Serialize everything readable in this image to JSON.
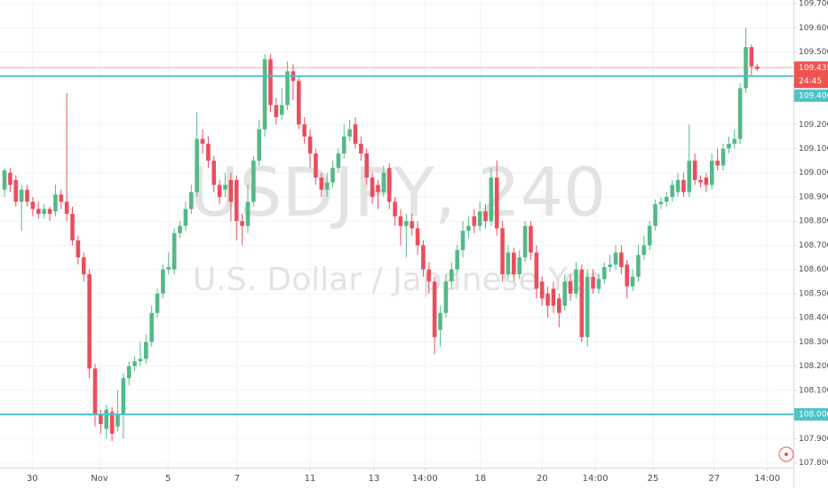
{
  "chart_data": {
    "type": "candlestick",
    "watermark": "USDJPY, 240",
    "watermark_subtitle": "U.S. Dollar / Japanese Yen",
    "up_color": "#53b987",
    "down_color": "#eb4d5c",
    "open": [
      108.93,
      109.0,
      108.97,
      108.88,
      108.93,
      108.88,
      108.85,
      108.83,
      108.85,
      108.84,
      108.91,
      108.88,
      108.83,
      108.72,
      108.65,
      108.58,
      108.19,
      108.0,
      107.94,
      108.01,
      107.95,
      108.0,
      108.15,
      108.2,
      108.22,
      108.23,
      108.3,
      108.42,
      108.5,
      108.6,
      108.6,
      108.75,
      108.78,
      108.85,
      108.92,
      109.14,
      109.12,
      109.05,
      108.95,
      108.93,
      108.97,
      108.97,
      108.8,
      108.78,
      108.88,
      109.05,
      109.18,
      109.47,
      109.28,
      109.24,
      109.28,
      109.42,
      109.38,
      109.2,
      109.15,
      109.08,
      108.98,
      108.93,
      108.96,
      109.02,
      109.08,
      109.15,
      109.2,
      109.12,
      109.08,
      108.98,
      108.95,
      108.92,
      109.02,
      108.88,
      108.82,
      108.78,
      108.8,
      108.77,
      108.7,
      108.6,
      108.55,
      108.35,
      108.42,
      108.55,
      108.6,
      108.68,
      108.76,
      108.82,
      108.78,
      108.84,
      108.8,
      108.98,
      108.77,
      108.58,
      108.67,
      108.58,
      108.65,
      108.78,
      108.67,
      108.55,
      108.5,
      108.52,
      108.48,
      108.45,
      108.55,
      108.5,
      108.6,
      108.32,
      108.57,
      108.52,
      108.56,
      108.61,
      108.62,
      108.67,
      108.62,
      108.53,
      108.57,
      108.66,
      108.7,
      108.78,
      108.87,
      108.88,
      108.9,
      108.92,
      108.97,
      108.92,
      109.05,
      108.97,
      108.98,
      108.95,
      109.05,
      109.03,
      109.1,
      109.12,
      109.14,
      109.35,
      109.52,
      109.44
    ],
    "high": [
      109.02,
      109.02,
      108.99,
      108.95,
      108.95,
      108.9,
      108.88,
      108.87,
      108.86,
      108.95,
      108.93,
      109.33,
      108.86,
      108.74,
      108.67,
      108.6,
      108.21,
      108.02,
      108.04,
      108.03,
      108.1,
      108.17,
      108.22,
      108.24,
      108.3,
      108.33,
      108.45,
      108.52,
      108.62,
      108.67,
      108.77,
      108.8,
      108.88,
      108.95,
      109.25,
      109.18,
      109.15,
      109.07,
      108.97,
      109.0,
      109.0,
      108.99,
      108.83,
      108.95,
      109.07,
      109.22,
      109.49,
      109.49,
      109.31,
      109.35,
      109.46,
      109.45,
      109.4,
      109.23,
      109.18,
      109.1,
      109.0,
      109.0,
      109.05,
      109.1,
      109.2,
      109.22,
      109.23,
      109.15,
      109.1,
      109.0,
      108.97,
      109.03,
      109.04,
      108.9,
      108.85,
      108.83,
      108.83,
      108.8,
      108.72,
      108.63,
      108.57,
      108.45,
      108.58,
      108.63,
      108.7,
      108.8,
      108.82,
      108.85,
      108.88,
      108.87,
      109.02,
      109.05,
      108.8,
      108.7,
      108.69,
      108.68,
      108.8,
      108.8,
      108.7,
      108.57,
      108.53,
      108.55,
      108.5,
      108.58,
      108.58,
      108.63,
      108.62,
      108.6,
      108.6,
      108.58,
      108.63,
      108.66,
      108.7,
      108.7,
      108.64,
      108.6,
      108.7,
      108.74,
      108.8,
      108.89,
      108.9,
      108.92,
      108.97,
      109.0,
      109.0,
      109.2,
      109.08,
      108.99,
      109.0,
      109.08,
      109.1,
      109.12,
      109.15,
      109.18,
      109.37,
      109.6,
      109.53,
      109.45
    ],
    "low": [
      108.9,
      108.92,
      108.86,
      108.76,
      108.86,
      108.82,
      108.81,
      108.81,
      108.8,
      108.82,
      108.85,
      108.8,
      108.7,
      108.62,
      108.55,
      108.15,
      107.95,
      107.92,
      107.9,
      107.89,
      107.93,
      107.9,
      108.12,
      108.18,
      108.2,
      108.21,
      108.28,
      108.4,
      108.48,
      108.58,
      108.58,
      108.73,
      108.76,
      108.83,
      108.9,
      109.08,
      109.02,
      108.92,
      108.87,
      108.9,
      108.8,
      108.72,
      108.7,
      108.75,
      108.86,
      109.03,
      109.15,
      109.25,
      109.2,
      109.22,
      109.26,
      109.3,
      109.18,
      109.12,
      109.02,
      108.95,
      108.9,
      108.9,
      108.94,
      109.0,
      109.06,
      109.13,
      109.1,
      109.05,
      108.95,
      108.87,
      108.85,
      108.9,
      108.85,
      108.78,
      108.7,
      108.65,
      108.74,
      108.66,
      108.57,
      108.5,
      108.25,
      108.28,
      108.4,
      108.52,
      108.58,
      108.65,
      108.73,
      108.75,
      108.76,
      108.77,
      108.78,
      108.74,
      108.55,
      108.56,
      108.55,
      108.56,
      108.63,
      108.64,
      108.48,
      108.45,
      108.4,
      108.42,
      108.36,
      108.43,
      108.47,
      108.48,
      108.3,
      108.28,
      108.5,
      108.5,
      108.54,
      108.59,
      108.6,
      108.58,
      108.48,
      108.51,
      108.55,
      108.64,
      108.68,
      108.76,
      108.85,
      108.86,
      108.88,
      108.9,
      108.9,
      108.9,
      108.95,
      108.94,
      108.92,
      108.93,
      109.01,
      109.01,
      109.08,
      109.1,
      109.12,
      109.33,
      109.4,
      109.42
    ],
    "close": [
      109.01,
      108.95,
      108.88,
      108.93,
      108.88,
      108.85,
      108.83,
      108.85,
      108.83,
      108.91,
      108.88,
      108.83,
      108.72,
      108.65,
      108.58,
      108.19,
      108.0,
      107.96,
      108.02,
      107.92,
      108.0,
      108.15,
      108.2,
      108.22,
      108.23,
      108.3,
      108.42,
      108.5,
      108.6,
      108.61,
      108.75,
      108.78,
      108.85,
      108.92,
      109.14,
      109.12,
      109.05,
      108.95,
      108.9,
      108.95,
      108.88,
      108.8,
      108.78,
      108.88,
      109.05,
      109.18,
      109.47,
      109.28,
      109.23,
      109.28,
      109.42,
      109.38,
      109.2,
      109.15,
      109.08,
      108.98,
      108.93,
      108.96,
      109.02,
      109.08,
      109.15,
      109.18,
      109.12,
      109.08,
      108.98,
      108.9,
      108.92,
      109.0,
      108.88,
      108.82,
      108.78,
      108.8,
      108.77,
      108.7,
      108.6,
      108.55,
      108.32,
      108.42,
      108.55,
      108.6,
      108.68,
      108.76,
      108.78,
      108.78,
      108.84,
      108.8,
      108.98,
      108.77,
      108.58,
      108.67,
      108.58,
      108.65,
      108.78,
      108.67,
      108.52,
      108.48,
      108.45,
      108.45,
      108.42,
      108.55,
      108.5,
      108.6,
      108.32,
      108.57,
      108.52,
      108.56,
      108.61,
      108.62,
      108.67,
      108.61,
      108.53,
      108.57,
      108.66,
      108.7,
      108.78,
      108.87,
      108.88,
      108.9,
      108.95,
      108.97,
      108.92,
      109.05,
      108.97,
      108.96,
      108.95,
      109.05,
      109.03,
      109.1,
      109.12,
      109.14,
      109.35,
      109.52,
      109.44,
      109.43
    ],
    "xlim": [
      -0.8,
      139.4
    ],
    "xticks": [
      {
        "value": 4.9,
        "label": "30"
      },
      {
        "value": 16.8,
        "label": "Nov"
      },
      {
        "value": 28.9,
        "label": "5"
      },
      {
        "value": 41.1,
        "label": "7"
      },
      {
        "value": 54,
        "label": "11"
      },
      {
        "value": 65.3,
        "label": "13"
      },
      {
        "value": 74.3,
        "label": "14:00"
      },
      {
        "value": 84.1,
        "label": "18"
      },
      {
        "value": 95,
        "label": "20"
      },
      {
        "value": 104.4,
        "label": "14:00"
      },
      {
        "value": 114.6,
        "label": "25"
      },
      {
        "value": 125.4,
        "label": "27"
      },
      {
        "value": 134.8,
        "label": "14:00"
      }
    ],
    "ylim": [
      107.78,
      109.715
    ],
    "yticks": [
      {
        "value": 109.7,
        "label": "109.700"
      },
      {
        "value": 109.6,
        "label": "109.600"
      },
      {
        "value": 109.5,
        "label": "109.500"
      },
      {
        "value": 109.2,
        "label": "109.200"
      },
      {
        "value": 109.1,
        "label": "109.100"
      },
      {
        "value": 109.0,
        "label": "109.000"
      },
      {
        "value": 108.9,
        "label": "108.900"
      },
      {
        "value": 108.8,
        "label": "108.800"
      },
      {
        "value": 108.7,
        "label": "108.700"
      },
      {
        "value": 108.6,
        "label": "108.600"
      },
      {
        "value": 108.5,
        "label": "108.500"
      },
      {
        "value": 108.4,
        "label": "108.400"
      },
      {
        "value": 108.3,
        "label": "108.300"
      },
      {
        "value": 108.2,
        "label": "108.200"
      },
      {
        "value": 108.1,
        "label": "108.100"
      },
      {
        "value": 107.9,
        "label": "107.900"
      },
      {
        "value": 107.8,
        "label": "107.800"
      }
    ],
    "grid": true,
    "horizontal_lines": [
      {
        "value": 109.4,
        "label": "109.400",
        "color": "#4dc3c8"
      },
      {
        "value": 108.0,
        "label": "108.000",
        "color": "#4dc3c8"
      }
    ],
    "last_price": {
      "value": 109.435,
      "countdown": "24:45",
      "color": "#ef5350"
    }
  }
}
